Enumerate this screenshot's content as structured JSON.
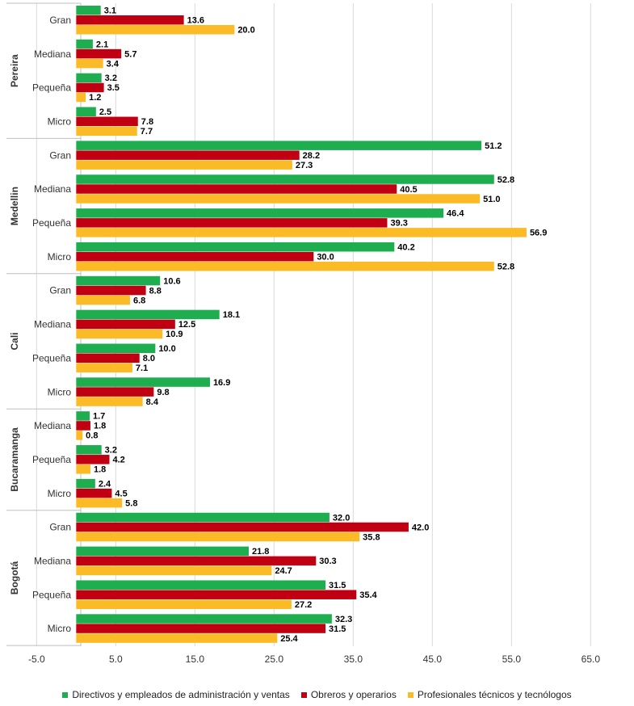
{
  "chart_data": {
    "type": "bar",
    "orientation": "horizontal",
    "grid": true,
    "legend_position": "bottom",
    "xlim": [
      -5,
      70
    ],
    "xticks": [
      "-5.0",
      "5.0",
      "15.0",
      "25.0",
      "35.0",
      "45.0",
      "55.0",
      "65.0"
    ],
    "series": [
      {
        "name": "Directivos y empleados de administración y ventas",
        "color": "#1fae4f"
      },
      {
        "name": "Obreros y operarios",
        "color": "#c00012"
      },
      {
        "name": "Profesionales técnicos y tecnólogos",
        "color": "#fbbb27"
      }
    ],
    "groups": [
      {
        "city": "Pereira",
        "rows": [
          {
            "size": "Gran",
            "values": [
              3.1,
              13.6,
              20.0
            ],
            "labels": [
              "3.1",
              "13.6",
              "20.0"
            ]
          },
          {
            "size": "Mediana",
            "values": [
              2.1,
              5.7,
              3.4
            ],
            "labels": [
              "2.1",
              "5.7",
              "3.4"
            ]
          },
          {
            "size": "Pequeña",
            "values": [
              3.2,
              3.5,
              1.2
            ],
            "labels": [
              "3.2",
              "3.5",
              "1.2"
            ]
          },
          {
            "size": "Micro",
            "values": [
              2.5,
              7.8,
              7.7
            ],
            "labels": [
              "2.5",
              "7.8",
              "7.7"
            ]
          }
        ]
      },
      {
        "city": "Medellin",
        "rows": [
          {
            "size": "Gran",
            "values": [
              51.2,
              28.2,
              27.3
            ],
            "labels": [
              "51.2",
              "28.2",
              "27.3"
            ]
          },
          {
            "size": "Mediana",
            "values": [
              52.8,
              40.5,
              51.0
            ],
            "labels": [
              "52.8",
              "40.5",
              "51.0"
            ]
          },
          {
            "size": "Pequeña",
            "values": [
              46.4,
              39.3,
              56.9
            ],
            "labels": [
              "46.4",
              "39.3",
              "56.9"
            ]
          },
          {
            "size": "Micro",
            "values": [
              40.2,
              30.0,
              52.8
            ],
            "labels": [
              "40.2",
              "30.0",
              "52.8"
            ]
          }
        ]
      },
      {
        "city": "Cali",
        "rows": [
          {
            "size": "Gran",
            "values": [
              10.6,
              8.8,
              6.8
            ],
            "labels": [
              "10.6",
              "8.8",
              "6.8"
            ]
          },
          {
            "size": "Mediana",
            "values": [
              18.1,
              12.5,
              10.9
            ],
            "labels": [
              "18.1",
              "12.5",
              "10.9"
            ]
          },
          {
            "size": "Pequeña",
            "values": [
              10.0,
              8.0,
              7.1
            ],
            "labels": [
              "10.0",
              "8.0",
              "7.1"
            ]
          },
          {
            "size": "Micro",
            "values": [
              16.9,
              9.8,
              8.4
            ],
            "labels": [
              "16.9",
              "9.8",
              "8.4"
            ]
          }
        ]
      },
      {
        "city": "Bucaramanga",
        "rows": [
          {
            "size": "Mediana",
            "values": [
              1.7,
              1.8,
              0.8
            ],
            "labels": [
              "1.7",
              "1.8",
              "0.8"
            ]
          },
          {
            "size": "Pequeña",
            "values": [
              3.2,
              4.2,
              1.8
            ],
            "labels": [
              "3.2",
              "4.2",
              "1.8"
            ]
          },
          {
            "size": "Micro",
            "values": [
              2.4,
              4.5,
              5.8
            ],
            "labels": [
              "2.4",
              "4.5",
              "5.8"
            ]
          }
        ]
      },
      {
        "city": "Bogotá",
        "rows": [
          {
            "size": "Gran",
            "values": [
              32.0,
              42.0,
              35.8
            ],
            "labels": [
              "32.0",
              "42.0",
              "35.8"
            ]
          },
          {
            "size": "Mediana",
            "values": [
              21.8,
              30.3,
              24.7
            ],
            "labels": [
              "21.8",
              "30.3",
              "24.7"
            ]
          },
          {
            "size": "Pequeña",
            "values": [
              31.5,
              35.4,
              27.2
            ],
            "labels": [
              "31.5",
              "35.4",
              "27.2"
            ]
          },
          {
            "size": "Micro",
            "values": [
              32.3,
              31.5,
              25.4
            ],
            "labels": [
              "32.3",
              "31.5",
              "25.4"
            ]
          }
        ]
      }
    ]
  }
}
